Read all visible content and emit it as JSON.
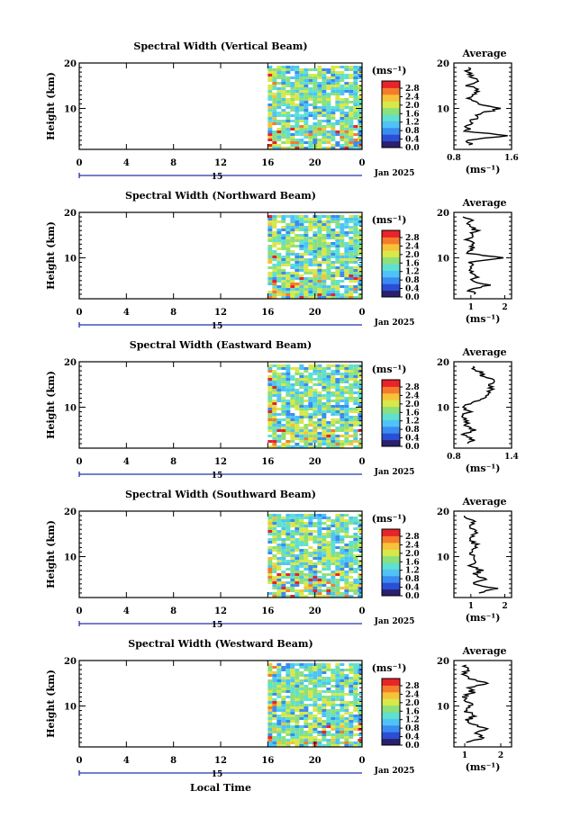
{
  "figure": {
    "x_axis_label": "Local Time",
    "date_label": "Jan 2025",
    "day_label": "15",
    "time_ticks": [
      "0",
      "4",
      "8",
      "12",
      "16",
      "20",
      "0"
    ],
    "colorbar_unit": "(ms⁻¹)",
    "colorbar_ticks": [
      "2.8",
      "2.4",
      "2.0",
      "1.6",
      "1.2",
      "0.8",
      "0.4",
      "0.0"
    ],
    "avg_title": "Average",
    "avg_xlabel": "(ms⁻¹)",
    "height_label": "Height (km)",
    "height_ticks": [
      "20",
      "10"
    ]
  },
  "colors": {
    "scale": [
      "#2b1f6e",
      "#2a4fd6",
      "#3a8cf0",
      "#4fc3f7",
      "#5fe0d0",
      "#8de07a",
      "#d8e84a",
      "#f6c23a",
      "#f47c2a",
      "#e8232a"
    ]
  },
  "chart_data": [
    {
      "type": "heatmap",
      "title": "Spectral Width (Vertical Beam)",
      "xlabel": "Local Time",
      "ylabel": "Height (km)",
      "x_range_hours": [
        0,
        24
      ],
      "y_range_km": [
        1,
        20
      ],
      "data_start_hour": 16,
      "color_range": [
        0.0,
        2.8
      ],
      "avg_profile": {
        "xlim": [
          0.8,
          1.6
        ],
        "xticks": [
          "0.8",
          "1.6"
        ],
        "heights_km": [
          2,
          3,
          4,
          5,
          6,
          7,
          8,
          9,
          10,
          11,
          12,
          13,
          14,
          15,
          16,
          17,
          18,
          19
        ],
        "values": [
          1.05,
          0.95,
          1.55,
          0.98,
          1.0,
          1.05,
          1.1,
          1.2,
          1.45,
          1.15,
          1.0,
          1.05,
          1.12,
          1.0,
          1.15,
          1.05,
          0.98,
          1.02
        ]
      }
    },
    {
      "type": "heatmap",
      "title": "Spectral Width (Northward Beam)",
      "xlabel": "Local Time",
      "ylabel": "Height (km)",
      "x_range_hours": [
        0,
        24
      ],
      "y_range_km": [
        1,
        20
      ],
      "data_start_hour": 16,
      "color_range": [
        0.0,
        2.8
      ],
      "avg_profile": {
        "xlim": [
          0.5,
          2.2
        ],
        "xticks": [
          "1",
          "2"
        ],
        "heights_km": [
          2,
          3,
          4,
          5,
          6,
          7,
          8,
          9,
          10,
          11,
          12,
          13,
          14,
          15,
          16,
          17,
          18,
          19
        ],
        "values": [
          1.1,
          0.9,
          1.6,
          0.95,
          1.2,
          1.0,
          1.05,
          0.9,
          1.9,
          0.95,
          1.0,
          1.1,
          0.9,
          1.0,
          1.15,
          0.95,
          1.0,
          0.85
        ]
      }
    },
    {
      "type": "heatmap",
      "title": "Spectral Width (Eastward Beam)",
      "xlabel": "Local Time",
      "ylabel": "Height (km)",
      "x_range_hours": [
        0,
        24
      ],
      "y_range_km": [
        1,
        20
      ],
      "data_start_hour": 16,
      "color_range": [
        0.0,
        2.8
      ],
      "avg_profile": {
        "xlim": [
          0.8,
          1.4
        ],
        "xticks": [
          "0.8",
          "1.4"
        ],
        "heights_km": [
          2,
          3,
          4,
          5,
          6,
          7,
          8,
          9,
          10,
          11,
          12,
          13,
          14,
          15,
          16,
          17,
          18,
          19
        ],
        "values": [
          0.95,
          1.0,
          0.9,
          1.0,
          0.92,
          0.95,
          0.9,
          0.95,
          0.9,
          1.0,
          1.1,
          1.15,
          1.2,
          1.15,
          1.25,
          1.1,
          1.05,
          1.0
        ]
      }
    },
    {
      "type": "heatmap",
      "title": "Spectral Width (Southward Beam)",
      "xlabel": "Local Time",
      "ylabel": "Height (km)",
      "x_range_hours": [
        0,
        24
      ],
      "y_range_km": [
        1,
        20
      ],
      "data_start_hour": 16,
      "color_range": [
        0.0,
        2.8
      ],
      "avg_profile": {
        "xlim": [
          0.5,
          2.2
        ],
        "xticks": [
          "1",
          "2"
        ],
        "heights_km": [
          2,
          3,
          4,
          5,
          6,
          7,
          8,
          9,
          10,
          11,
          12,
          13,
          14,
          15,
          16,
          17,
          18,
          19
        ],
        "values": [
          1.2,
          1.8,
          1.0,
          1.4,
          1.1,
          1.3,
          1.0,
          1.2,
          1.1,
          1.0,
          1.2,
          1.1,
          1.0,
          1.15,
          1.05,
          1.0,
          1.1,
          0.8
        ]
      }
    },
    {
      "type": "heatmap",
      "title": "Spectral Width (Westward Beam)",
      "xlabel": "Local Time",
      "ylabel": "Height (km)",
      "x_range_hours": [
        0,
        24
      ],
      "y_range_km": [
        1,
        20
      ],
      "data_start_hour": 16,
      "color_range": [
        0.0,
        2.8
      ],
      "avg_profile": {
        "xlim": [
          0.7,
          2.3
        ],
        "xticks": [
          "1",
          "2"
        ],
        "heights_km": [
          2,
          3,
          4,
          5,
          6,
          7,
          8,
          9,
          10,
          11,
          12,
          13,
          14,
          15,
          16,
          17,
          18,
          19
        ],
        "values": [
          1.1,
          1.5,
          1.3,
          1.6,
          1.2,
          1.1,
          1.3,
          1.0,
          1.2,
          1.1,
          1.0,
          1.2,
          1.1,
          1.6,
          1.2,
          1.0,
          1.1,
          1.0
        ]
      }
    }
  ]
}
